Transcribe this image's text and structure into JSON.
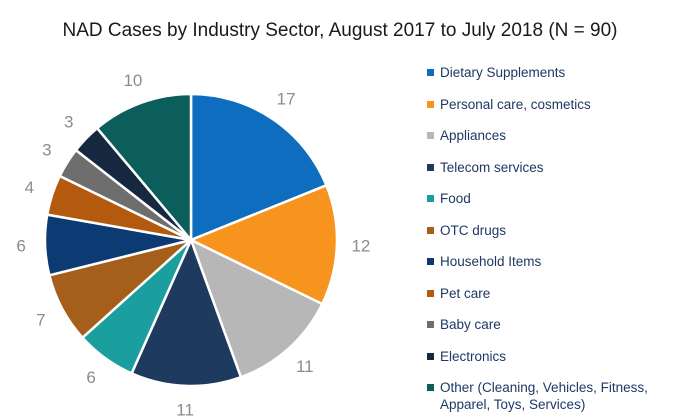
{
  "chart_data": {
    "type": "pie",
    "title": "NAD Cases by Industry Sector, August 2017 to July 2018 (N = 90)",
    "total": 90,
    "slices": [
      {
        "label": "Dietary Supplements",
        "value": 17,
        "color": "#0e6dbf"
      },
      {
        "label": "Personal care, cosmetics",
        "value": 12,
        "color": "#f7941d"
      },
      {
        "label": "Appliances",
        "value": 11,
        "color": "#b7b7b7"
      },
      {
        "label": "Telecom services",
        "value": 11,
        "color": "#1f3a5f"
      },
      {
        "label": "Food",
        "value": 6,
        "color": "#1a9e9e"
      },
      {
        "label": "OTC drugs",
        "value": 7,
        "color": "#a65f1b"
      },
      {
        "label": "Household Items",
        "value": 6,
        "color": "#0c3a72"
      },
      {
        "label": "Pet care",
        "value": 4,
        "color": "#b35a0f"
      },
      {
        "label": "Baby care",
        "value": 3,
        "color": "#6e6e6e"
      },
      {
        "label": "Electronics",
        "value": 3,
        "color": "#152840"
      },
      {
        "label": "Other (Cleaning, Vehicles, Fitness, Apparel, Toys, Services)",
        "value": 10,
        "color": "#0b5e5b"
      }
    ],
    "legend": {
      "position": "right"
    }
  }
}
